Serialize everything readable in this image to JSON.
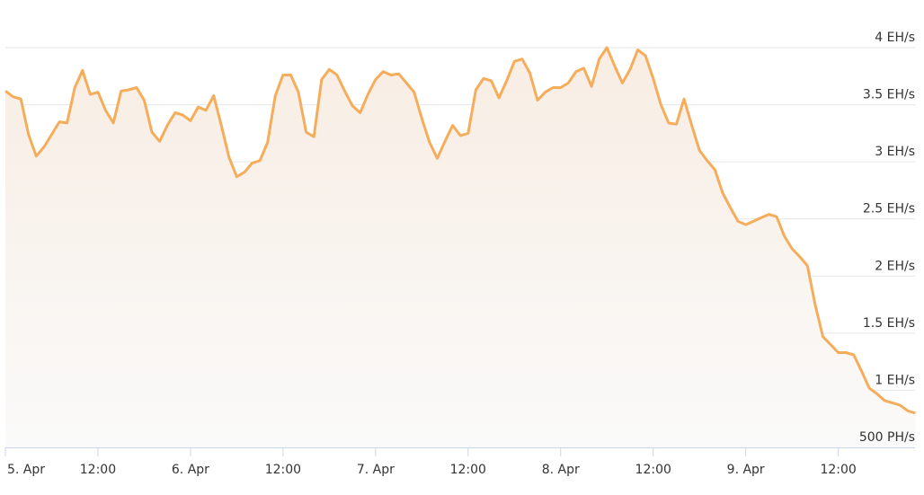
{
  "chart_data": {
    "type": "area",
    "title": "",
    "xlabel": "",
    "ylabel": "",
    "y_unit": "EH/s",
    "ylim": [
      0.5,
      4
    ],
    "y_ticks": [
      {
        "value": 0.5,
        "label": "500 PH/s"
      },
      {
        "value": 1,
        "label": "1 EH/s"
      },
      {
        "value": 1.5,
        "label": "1.5 EH/s"
      },
      {
        "value": 2,
        "label": "2 EH/s"
      },
      {
        "value": 2.5,
        "label": "2.5 EH/s"
      },
      {
        "value": 3,
        "label": "3 EH/s"
      },
      {
        "value": 3.5,
        "label": "3.5 EH/s"
      },
      {
        "value": 4,
        "label": "4 EH/s"
      }
    ],
    "x_ticks": [
      "5. Apr",
      "12:00",
      "6. Apr",
      "12:00",
      "7. Apr",
      "12:00",
      "8. Apr",
      "12:00",
      "9. Apr",
      "12:00"
    ],
    "grid": true,
    "legend": "none",
    "colors": {
      "line": "#f5ad5b",
      "fill_top": "#f8ede3",
      "fill_bottom": "#fafafa",
      "grid": "#e6e6e6",
      "axis": "#ccd6eb"
    },
    "hourly_values_by_day": [
      {
        "day": "5. Apr",
        "values": [
          3.62,
          3.57,
          3.55,
          3.24,
          3.05,
          3.13,
          3.24,
          3.35,
          3.34,
          3.65,
          3.8,
          3.59,
          3.61,
          3.45,
          3.34,
          3.62,
          3.63,
          3.65,
          3.54,
          3.26,
          3.18,
          3.32,
          3.43,
          3.41
        ]
      },
      {
        "day": "6. Apr",
        "values": [
          3.36,
          3.48,
          3.45,
          3.58,
          3.32,
          3.04,
          2.87,
          2.91,
          2.99,
          3.01,
          3.17,
          3.58,
          3.76,
          3.76,
          3.61,
          3.26,
          3.22,
          3.72,
          3.81,
          3.76,
          3.62,
          3.49,
          3.43,
          3.59
        ]
      },
      {
        "day": "7. Apr",
        "values": [
          3.72,
          3.79,
          3.76,
          3.77,
          3.69,
          3.61,
          3.38,
          3.17,
          3.03,
          3.18,
          3.32,
          3.23,
          3.25,
          3.63,
          3.73,
          3.71,
          3.56,
          3.71,
          3.88,
          3.9,
          3.78,
          3.54,
          3.61,
          3.65
        ]
      },
      {
        "day": "8. Apr",
        "values": [
          3.65,
          3.69,
          3.79,
          3.82,
          3.66,
          3.9,
          4.0,
          3.84,
          3.69,
          3.81,
          3.98,
          3.93,
          3.73,
          3.5,
          3.34,
          3.33,
          3.55,
          3.32,
          3.1,
          3.01,
          2.93,
          2.73,
          2.6,
          2.48
        ]
      },
      {
        "day": "9. Apr",
        "values": [
          2.45,
          2.48,
          2.51,
          2.54,
          2.52,
          2.35,
          2.24,
          2.17,
          2.09,
          1.75,
          1.47,
          1.4,
          1.33,
          1.33,
          1.31,
          1.17,
          1.02,
          0.97,
          0.91,
          0.89,
          0.87,
          0.82,
          0.8
        ]
      }
    ]
  }
}
